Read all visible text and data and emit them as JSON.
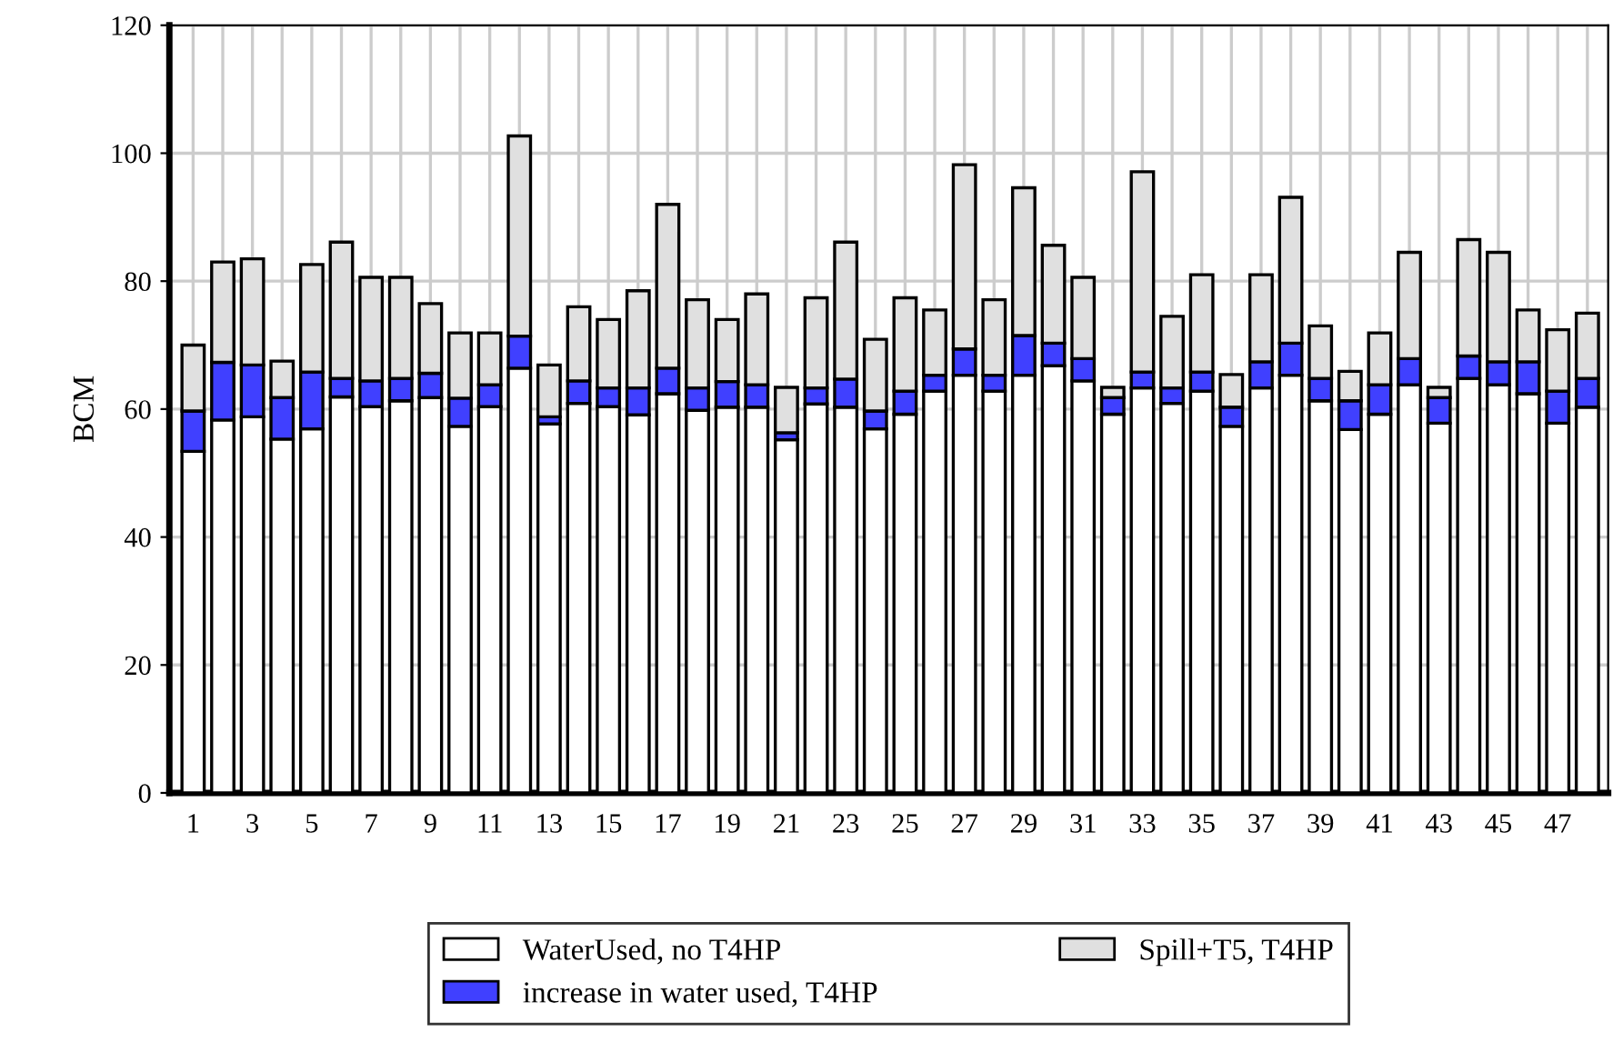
{
  "chart_data": {
    "type": "bar",
    "stacked": true,
    "ylabel": "BCM",
    "categories": [
      "1",
      null,
      "3",
      null,
      "5",
      null,
      "7",
      null,
      "9",
      null,
      "11",
      null,
      "13",
      null,
      "15",
      null,
      "17",
      null,
      "19",
      null,
      "21",
      null,
      "23",
      null,
      "25",
      null,
      "27",
      null,
      "29",
      null,
      "31",
      null,
      "33",
      null,
      "35",
      null,
      "37",
      null,
      "39",
      null,
      "41",
      null,
      "43",
      null,
      "45",
      null,
      "47",
      null
    ],
    "series": [
      {
        "name": "WaterUsed, no T4HP",
        "color": "#ffffff",
        "values": [
          53.4,
          58.3,
          58.8,
          55.3,
          56.9,
          61.9,
          60.4,
          61.3,
          61.8,
          57.3,
          60.4,
          66.4,
          57.7,
          60.9,
          60.4,
          59.1,
          62.4,
          59.8,
          60.3,
          60.3,
          55.2,
          60.8,
          60.3,
          56.9,
          59.2,
          62.8,
          65.3,
          62.8,
          65.3,
          66.8,
          64.4,
          59.2,
          63.3,
          60.9,
          62.8,
          57.3,
          63.3,
          65.3,
          61.3,
          56.8,
          59.2,
          63.8,
          57.8,
          64.8,
          63.8,
          62.4,
          57.8,
          60.3
        ]
      },
      {
        "name": "increase in water used, T4HP",
        "color": "#4040ff",
        "values": [
          6.3,
          9.0,
          8.1,
          6.5,
          8.9,
          2.9,
          4.0,
          3.5,
          3.8,
          4.4,
          3.4,
          5.0,
          1.1,
          3.5,
          2.9,
          4.2,
          4.0,
          3.5,
          4.0,
          3.5,
          1.1,
          2.5,
          4.4,
          2.8,
          3.6,
          2.5,
          4.1,
          2.5,
          6.2,
          3.5,
          3.5,
          2.6,
          2.5,
          2.4,
          3.0,
          3.0,
          4.1,
          5.0,
          3.5,
          4.5,
          4.6,
          4.1,
          4.0,
          3.5,
          3.6,
          5.0,
          5.0,
          4.5
        ]
      },
      {
        "name": "Spill+T5, T4HP",
        "color": "#e0e0e0",
        "values": [
          10.3,
          15.7,
          16.6,
          5.7,
          16.8,
          21.3,
          16.2,
          15.8,
          10.9,
          10.2,
          8.1,
          31.3,
          8.1,
          11.6,
          10.7,
          15.2,
          25.6,
          13.8,
          9.7,
          14.2,
          7.1,
          14.1,
          21.4,
          11.2,
          14.6,
          10.2,
          28.8,
          11.8,
          23.1,
          15.3,
          12.7,
          1.6,
          31.3,
          11.2,
          15.2,
          5.1,
          13.6,
          22.8,
          8.2,
          4.6,
          8.1,
          16.6,
          1.6,
          18.2,
          17.1,
          8.1,
          9.6,
          10.2
        ]
      }
    ],
    "ylim": [
      0,
      120
    ],
    "yticks": [
      0,
      20,
      40,
      60,
      80,
      100,
      120
    ],
    "grid": true,
    "legend": "bottom"
  }
}
